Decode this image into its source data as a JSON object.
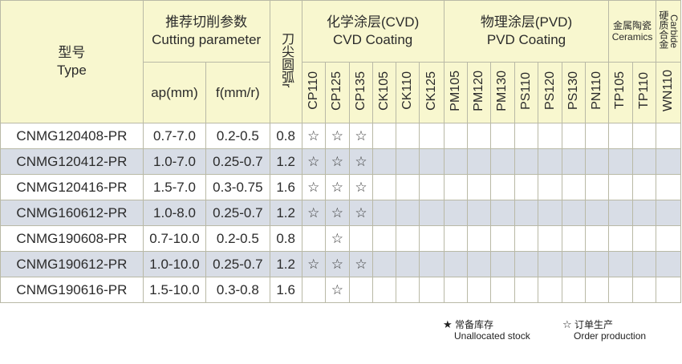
{
  "header": {
    "type_cn": "型号",
    "type_en": "Type",
    "cutting_cn": "推荐切削参数",
    "cutting_en": "Cutting parameter",
    "ap": "ap(mm)",
    "f": "f(mm/r)",
    "radius": "刀尖圆弧r",
    "cvd_cn": "化学涂层(CVD)",
    "cvd_en": "CVD Coating",
    "pvd_cn": "物理涂层(PVD)",
    "pvd_en": "PVD Coating",
    "cermet_cn": "金属陶瓷",
    "cermet_en": "Ceramics",
    "carbide_cn": "硬质合金",
    "carbide_en": "Carbide",
    "grades": [
      "CP110",
      "CP125",
      "CP135",
      "CK105",
      "CK110",
      "CK125",
      "PM105",
      "PM120",
      "PM130",
      "PS110",
      "PS120",
      "PS130",
      "PN110",
      "TP105",
      "TP110",
      "WN110"
    ]
  },
  "rows": [
    {
      "type": "CNMG120408-PR",
      "ap": "0.7-7.0",
      "f": "0.2-0.5",
      "r": "0.8",
      "marks": [
        "☆",
        "☆",
        "☆",
        "",
        "",
        "",
        "",
        "",
        "",
        "",
        "",
        "",
        "",
        "",
        "",
        ""
      ]
    },
    {
      "type": "CNMG120412-PR",
      "ap": "1.0-7.0",
      "f": "0.25-0.7",
      "r": "1.2",
      "marks": [
        "☆",
        "☆",
        "☆",
        "",
        "",
        "",
        "",
        "",
        "",
        "",
        "",
        "",
        "",
        "",
        "",
        ""
      ]
    },
    {
      "type": "CNMG120416-PR",
      "ap": "1.5-7.0",
      "f": "0.3-0.75",
      "r": "1.6",
      "marks": [
        "☆",
        "☆",
        "☆",
        "",
        "",
        "",
        "",
        "",
        "",
        "",
        "",
        "",
        "",
        "",
        "",
        ""
      ]
    },
    {
      "type": "CNMG160612-PR",
      "ap": "1.0-8.0",
      "f": "0.25-0.7",
      "r": "1.2",
      "marks": [
        "☆",
        "☆",
        "☆",
        "",
        "",
        "",
        "",
        "",
        "",
        "",
        "",
        "",
        "",
        "",
        "",
        ""
      ]
    },
    {
      "type": "CNMG190608-PR",
      "ap": "0.7-10.0",
      "f": "0.2-0.5",
      "r": "0.8",
      "marks": [
        "",
        "☆",
        "",
        "",
        "",
        "",
        "",
        "",
        "",
        "",
        "",
        "",
        "",
        "",
        "",
        ""
      ]
    },
    {
      "type": "CNMG190612-PR",
      "ap": "1.0-10.0",
      "f": "0.25-0.7",
      "r": "1.2",
      "marks": [
        "☆",
        "☆",
        "☆",
        "",
        "",
        "",
        "",
        "",
        "",
        "",
        "",
        "",
        "",
        "",
        "",
        ""
      ]
    },
    {
      "type": "CNMG190616-PR",
      "ap": "1.5-10.0",
      "f": "0.3-0.8",
      "r": "1.6",
      "marks": [
        "",
        "☆",
        "",
        "",
        "",
        "",
        "",
        "",
        "",
        "",
        "",
        "",
        "",
        "",
        "",
        ""
      ]
    }
  ],
  "legend": {
    "stock_symbol": "★",
    "stock_cn": "常备库存",
    "stock_en": "Unallocated stock",
    "order_symbol": "☆",
    "order_cn": "订单生产",
    "order_en": "Order production"
  }
}
